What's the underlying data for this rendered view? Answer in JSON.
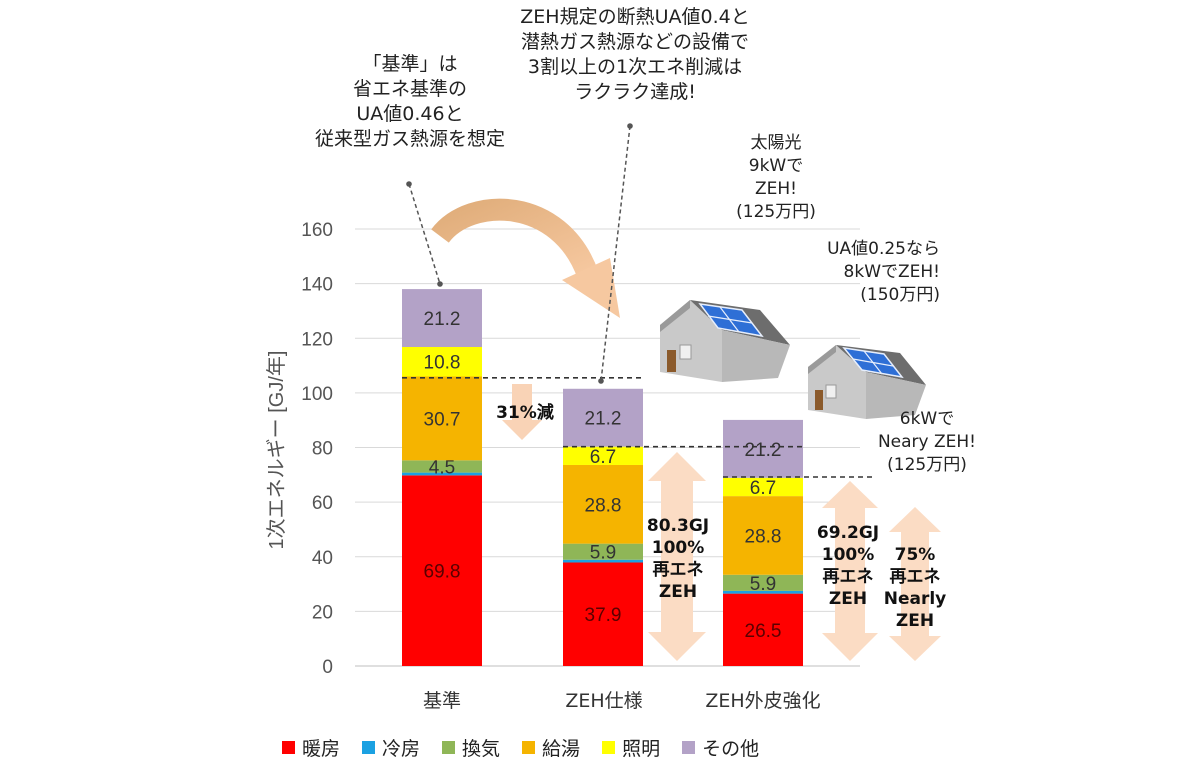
{
  "chart_data": {
    "type": "bar",
    "stacked": true,
    "ylabel": "1次エネルギー [GJ/年]",
    "ylim": [
      0,
      160
    ],
    "yticks": [
      0,
      20,
      40,
      60,
      80,
      100,
      120,
      140,
      160
    ],
    "grid": true,
    "legend_position": "bottom",
    "categories": [
      "基準",
      "ZEH仕様",
      "ZEH外皮強化"
    ],
    "series": [
      {
        "name": "暖房",
        "color": "#ff0000",
        "values": [
          69.8,
          37.9,
          26.5
        ],
        "labels": [
          "69.8",
          "37.9",
          "26.5"
        ]
      },
      {
        "name": "冷房",
        "color": "#1ba1e2",
        "values": [
          1.0,
          1.0,
          1.0
        ],
        "labels": [
          "",
          "",
          ""
        ]
      },
      {
        "name": "換気",
        "color": "#8fb657",
        "values": [
          4.5,
          5.9,
          5.9
        ],
        "labels": [
          "4.5",
          "5.9",
          "5.9"
        ]
      },
      {
        "name": "給湯",
        "color": "#f5b400",
        "values": [
          30.7,
          28.8,
          28.8
        ],
        "labels": [
          "30.7",
          "28.8",
          "28.8"
        ]
      },
      {
        "name": "照明",
        "color": "#ffff00",
        "values": [
          10.8,
          6.7,
          6.7
        ],
        "labels": [
          "10.8",
          "6.7",
          "6.7"
        ]
      },
      {
        "name": "その他",
        "color": "#b3a2c7",
        "values": [
          21.2,
          21.2,
          21.2
        ],
        "labels": [
          "21.2",
          "21.2",
          "21.2"
        ]
      }
    ],
    "reference_lines": [
      {
        "from_category": 0,
        "to_category": 1,
        "value": 105.5
      },
      {
        "from_category": 1,
        "to_category": 2,
        "value": 80.3
      },
      {
        "from_category": 2,
        "to_category": 2,
        "value": 69.2
      }
    ]
  },
  "annotations": {
    "kijun_note": [
      "「基準」は",
      "省エネ基準の",
      "UA値0.46と",
      "従来型ガス熱源を想定"
    ],
    "zeh_note": [
      "ZEH規定の断熱UA値0.4と",
      "潜熱ガス熱源などの設備で",
      "3割以上の1次エネ削減は",
      "ラクラク達成!"
    ],
    "reduction": "31%減",
    "solar_9kw": [
      "太陽光",
      "9kWで",
      "ZEH!",
      "(125万円)"
    ],
    "solar_8kw": [
      "UA値0.25なら",
      "8kWでZEH!",
      "(150万円)"
    ],
    "solar_6kw": [
      "6kWで",
      "Neary ZEH!",
      "(125万円)"
    ],
    "zeh_arrow": [
      "80.3GJ",
      "100%",
      "再エネ",
      "ZEH"
    ],
    "strong_arrow": [
      "69.2GJ",
      "100%",
      "再エネ",
      "ZEH"
    ],
    "nearly_arrow": [
      "75%",
      "再エネ",
      "Nearly",
      "ZEH"
    ]
  }
}
